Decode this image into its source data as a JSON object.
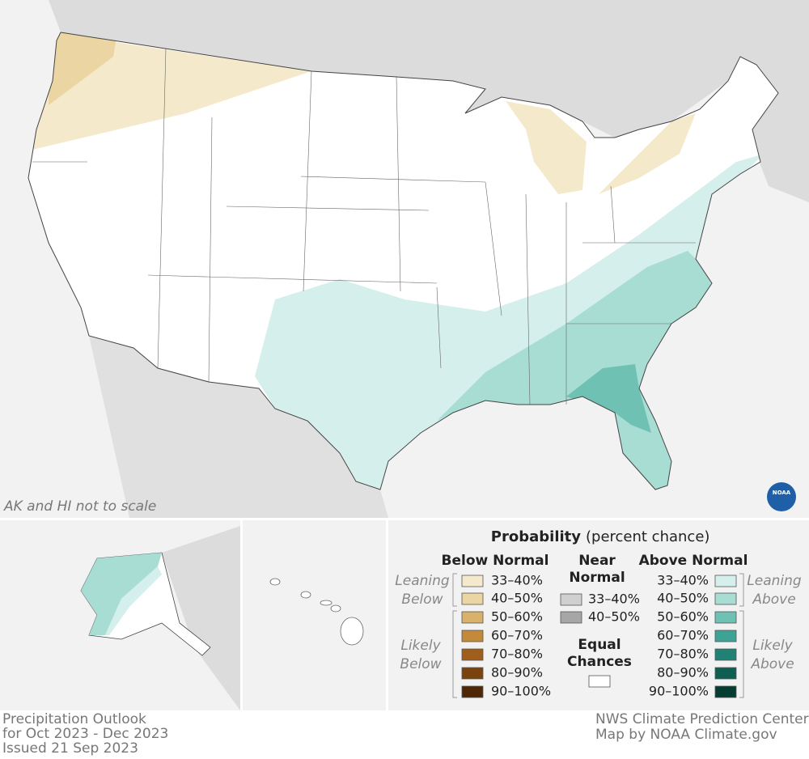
{
  "map_note": "AK and HI not to scale",
  "logo": "NOAA",
  "legend": {
    "title": "Probability",
    "subtitle": "(percent chance)",
    "below": {
      "header": "Below Normal",
      "leaning_label": [
        "Leaning",
        "Below"
      ],
      "likely_label": [
        "Likely",
        "Below"
      ],
      "items": [
        {
          "label": "33–40%",
          "color": "#f5e9cb"
        },
        {
          "label": "40–50%",
          "color": "#ebd5a2"
        },
        {
          "label": "50–60%",
          "color": "#d8b26b"
        },
        {
          "label": "60–70%",
          "color": "#c28a3a"
        },
        {
          "label": "70–80%",
          "color": "#a05e1c"
        },
        {
          "label": "80–90%",
          "color": "#7a420c"
        },
        {
          "label": "90–100%",
          "color": "#4e2806"
        }
      ]
    },
    "near": {
      "header": [
        "Near",
        "Normal"
      ],
      "items": [
        {
          "label": "33–40%",
          "color": "#d0d0d0"
        },
        {
          "label": "40–50%",
          "color": "#a6a6a6"
        }
      ]
    },
    "equal": {
      "label": [
        "Equal",
        "Chances"
      ],
      "color": "#ffffff"
    },
    "above": {
      "header": "Above Normal",
      "leaning_label": [
        "Leaning",
        "Above"
      ],
      "likely_label": [
        "Likely",
        "Above"
      ],
      "items": [
        {
          "label": "33–40%",
          "color": "#d5efec"
        },
        {
          "label": "40–50%",
          "color": "#a8ddd4"
        },
        {
          "label": "50–60%",
          "color": "#6fc2b3"
        },
        {
          "label": "60–70%",
          "color": "#3ea395"
        },
        {
          "label": "70–80%",
          "color": "#218174"
        },
        {
          "label": "80–90%",
          "color": "#0e5f52"
        },
        {
          "label": "90–100%",
          "color": "#053d33"
        }
      ]
    }
  },
  "footer": {
    "left": [
      "Precipitation Outlook",
      "for Oct 2023 - Dec 2023",
      "Issued 21 Sep 2023"
    ],
    "right": [
      "NWS Climate Prediction Center",
      "Map by NOAA Climate.gov"
    ]
  }
}
